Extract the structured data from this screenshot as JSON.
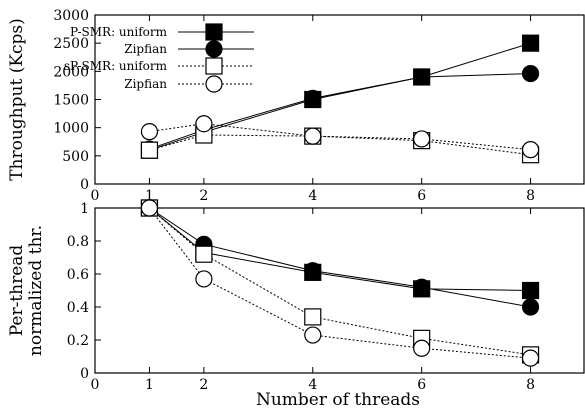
{
  "chart_data": [
    {
      "type": "line",
      "ylabel": "Throughput (Kcps)",
      "xlabel": "",
      "xlim": [
        0,
        9
      ],
      "ylim": [
        0,
        3000
      ],
      "xticks": [
        0,
        1,
        2,
        4,
        6,
        8
      ],
      "yticks": [
        0,
        500,
        1000,
        1500,
        2000,
        2500,
        3000
      ],
      "x": [
        1,
        2,
        4,
        6,
        8
      ],
      "legend_position": "top-left",
      "series": [
        {
          "group": "P-SMR:",
          "name": "uniform",
          "marker": "square-filled",
          "line": "solid",
          "values": [
            600,
            920,
            1500,
            1900,
            2500
          ]
        },
        {
          "group": "",
          "name": "Zipfian",
          "marker": "circle-filled",
          "line": "solid",
          "values": [
            620,
            960,
            1520,
            1900,
            1960
          ]
        },
        {
          "group": "sP-SMR:",
          "name": "uniform",
          "marker": "square-open",
          "line": "dotted",
          "values": [
            600,
            870,
            850,
            770,
            520
          ]
        },
        {
          "group": "",
          "name": "Zipfian",
          "marker": "circle-open",
          "line": "dotted",
          "values": [
            930,
            1070,
            850,
            800,
            610
          ]
        }
      ]
    },
    {
      "type": "line",
      "ylabel": [
        "Per-thread",
        "normalized thr."
      ],
      "xlabel": "Number of threads",
      "xlim": [
        0,
        9
      ],
      "ylim": [
        0,
        1
      ],
      "xticks": [
        0,
        1,
        2,
        4,
        6,
        8
      ],
      "yticks": [
        0,
        0.2,
        0.4,
        0.6,
        0.8,
        1
      ],
      "x": [
        1,
        2,
        4,
        6,
        8
      ],
      "series": [
        {
          "marker": "square-filled",
          "line": "solid",
          "values": [
            1.0,
            0.73,
            0.61,
            0.51,
            0.5
          ]
        },
        {
          "marker": "circle-filled",
          "line": "solid",
          "values": [
            1.0,
            0.78,
            0.62,
            0.52,
            0.4
          ]
        },
        {
          "marker": "square-open",
          "line": "dotted",
          "values": [
            1.0,
            0.72,
            0.34,
            0.21,
            0.11
          ]
        },
        {
          "marker": "circle-open",
          "line": "dotted",
          "values": [
            1.0,
            0.57,
            0.23,
            0.15,
            0.09
          ]
        }
      ]
    }
  ]
}
